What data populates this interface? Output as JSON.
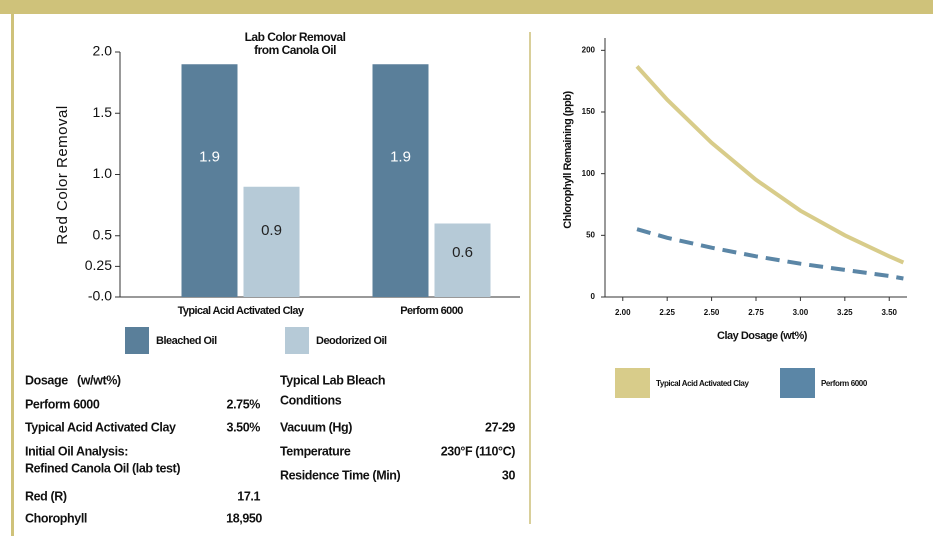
{
  "chart_data": [
    {
      "type": "bar",
      "title": [
        "Lab Color Removal",
        "from Canola Oil"
      ],
      "y_label": "Red Color Removal",
      "categories": [
        "Typical Acid Activated Clay",
        "Perform 6000"
      ],
      "series": [
        {
          "name": "Bleached Oil",
          "color": "#5a7f9a",
          "label_color": "#ffffff",
          "values": [
            1.9,
            1.9
          ]
        },
        {
          "name": "Deodorized Oil",
          "color": "#b6cad7",
          "label_color": "#222222",
          "values": [
            0.9,
            0.6
          ]
        }
      ],
      "ylim": [
        0,
        2
      ],
      "yticks": [
        {
          "value": 2,
          "label": "2.0"
        },
        {
          "value": 1.5,
          "label": "1.5"
        },
        {
          "value": 1,
          "label": "1.0"
        },
        {
          "value": 0.5,
          "label": "0.5"
        },
        {
          "value": 0.25,
          "label": "0.25"
        },
        {
          "value": 0,
          "label": "-0.0"
        }
      ]
    },
    {
      "type": "line",
      "y_label": "Chlorophyll Remaining (ppb)",
      "x_label": "Clay Dosage (wt%)",
      "x": [
        2.08,
        2.25,
        2.5,
        2.75,
        3.0,
        3.25,
        3.5,
        3.58
      ],
      "series": [
        {
          "name": "Typical Acid Activated Clay",
          "color": "#d8cc8a",
          "line_style": "solid",
          "values": [
            187,
            160,
            125,
            95,
            70,
            50,
            33,
            28
          ]
        },
        {
          "name": "Perform 6000",
          "color": "#5b86a6",
          "line_style": "dashed",
          "values": [
            55,
            48,
            40,
            33,
            27,
            22,
            17,
            15
          ]
        }
      ],
      "xlim": [
        1.9,
        3.6
      ],
      "ylim": [
        0,
        210
      ],
      "xticks": [
        {
          "value": 2,
          "label": "2.00"
        },
        {
          "value": 2.25,
          "label": "2.25"
        },
        {
          "value": 2.5,
          "label": "2.50"
        },
        {
          "value": 2.75,
          "label": "2.75"
        },
        {
          "value": 3,
          "label": "3.00"
        },
        {
          "value": 3.25,
          "label": "3.25"
        },
        {
          "value": 3.5,
          "label": "3.50"
        }
      ],
      "yticks": [
        0,
        50,
        100,
        150,
        200
      ]
    }
  ],
  "dosage": {
    "title": "Dosage   (w/wt%)",
    "rows": [
      [
        "Perform 6000",
        "2.75%"
      ],
      [
        "Typical Acid Activated Clay",
        "3.50%"
      ]
    ]
  },
  "oil_analysis": {
    "title": [
      "Initial Oil Analysis:",
      "Refined Canola Oil (lab test)"
    ],
    "rows": [
      [
        "Red (R)",
        "17.1"
      ],
      [
        "Chorophyll",
        "18,950"
      ]
    ]
  },
  "bleach_conditions": {
    "title": [
      "Typical Lab Bleach",
      "Conditions"
    ],
    "rows": [
      [
        "Vacuum (Hg)",
        "27-29"
      ],
      [
        "Temperature",
        "230°F (110°C)"
      ],
      [
        "Residence Time (Min)",
        "30"
      ]
    ]
  }
}
